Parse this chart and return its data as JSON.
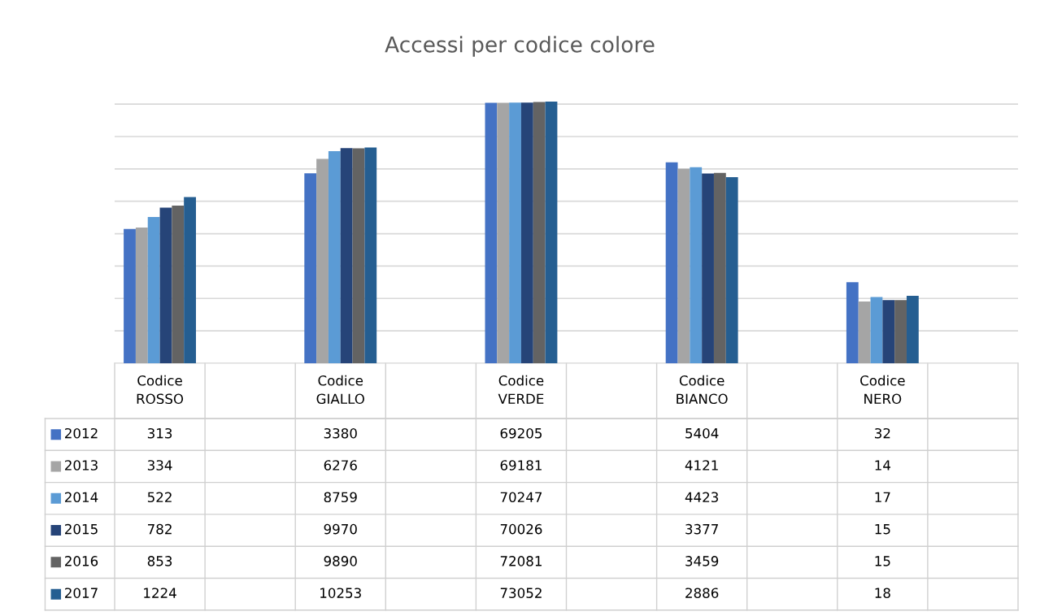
{
  "chart_data": {
    "type": "bar",
    "title": "Accessi per codice colore",
    "categories": [
      "Codice\nROSSO",
      "Codice\nGIALLO",
      "Codice\nVERDE",
      "Codice\nBIANCO",
      "Codice\nNERO"
    ],
    "series": [
      {
        "name": "2012",
        "color": "#4472c4",
        "values": [
          313,
          3380,
          69205,
          5404,
          32
        ]
      },
      {
        "name": "2013",
        "color": "#a5a5a5",
        "values": [
          334,
          6276,
          69181,
          4121,
          14
        ]
      },
      {
        "name": "2014",
        "color": "#5b9bd5",
        "values": [
          522,
          8759,
          70247,
          4423,
          17
        ]
      },
      {
        "name": "2015",
        "color": "#264478",
        "values": [
          782,
          9970,
          70026,
          3377,
          15
        ]
      },
      {
        "name": "2016",
        "color": "#636363",
        "values": [
          853,
          9890,
          72081,
          3459,
          15
        ]
      },
      {
        "name": "2017",
        "color": "#255e91",
        "values": [
          1224,
          10253,
          73052,
          2886,
          18
        ]
      }
    ],
    "log": true,
    "legend": "left",
    "ylim": [
      1,
      73052
    ],
    "yticks": [
      {
        "value": 1,
        "label": null
      },
      {
        "value": 4,
        "label": null
      },
      {
        "value": 16,
        "label": null
      },
      {
        "value": 64,
        "label": null
      },
      {
        "value": 256,
        "label": null
      },
      {
        "value": 1024,
        "label": null
      },
      {
        "value": 4096,
        "label": null
      },
      {
        "value": 16384,
        "label": null
      },
      {
        "value": 65536,
        "label": null
      }
    ],
    "grid": "y",
    "data_labels": true
  }
}
